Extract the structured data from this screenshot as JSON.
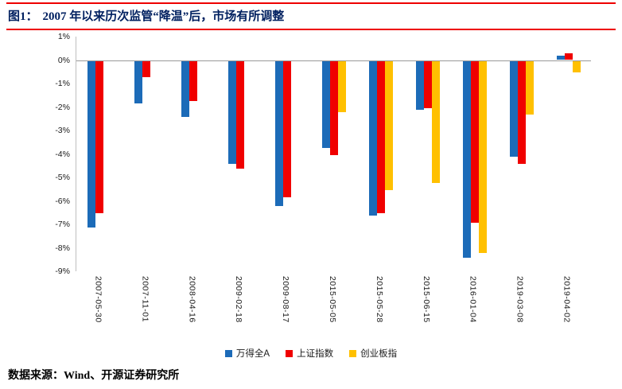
{
  "header": {
    "figure_label": "图1：",
    "title": "2007 年以来历次监管“降温”后，市场有所调整"
  },
  "footer": {
    "source": "数据来源：Wind、开源证券研究所"
  },
  "colors": {
    "title_text": "#002060",
    "rule_red": "#EE0000",
    "axis_line": "#BFBFBF",
    "zero_line": "#999999",
    "tick_text": "#1A1A1A"
  },
  "chart_data": {
    "type": "bar",
    "title": "2007 年以来历次监管“降温”后，市场有所调整",
    "categories": [
      "2007-05-30",
      "2007-11-01",
      "2008-04-16",
      "2009-02-18",
      "2009-08-17",
      "2015-05-05",
      "2015-05-28",
      "2015-06-15",
      "2016-01-04",
      "2019-03-08",
      "2019-04-02"
    ],
    "series": [
      {
        "name": "万得全A",
        "color": "#1C6BB8",
        "values": [
          -7.1,
          -1.8,
          -2.4,
          -4.4,
          -6.2,
          -3.7,
          -6.6,
          -2.1,
          -8.4,
          -4.1,
          0.2
        ]
      },
      {
        "name": "上证指数",
        "color": "#F00000",
        "values": [
          -6.5,
          -0.7,
          -1.7,
          -4.6,
          -5.8,
          -4.0,
          -6.5,
          -2.0,
          -6.9,
          -4.4,
          0.3
        ]
      },
      {
        "name": "创业板指",
        "color": "#FFC000",
        "values": [
          null,
          null,
          null,
          null,
          null,
          -2.2,
          -5.5,
          -5.2,
          -8.2,
          -2.3,
          -0.5
        ]
      }
    ],
    "ylim": [
      -9,
      1
    ],
    "ytick_step": 1,
    "ytick_labels": [
      "1%",
      "0%",
      "-1%",
      "-2%",
      "-3%",
      "-4%",
      "-5%",
      "-6%",
      "-7%",
      "-8%",
      "-9%"
    ],
    "unit": "%",
    "legend_position": "bottom",
    "grid": false
  }
}
